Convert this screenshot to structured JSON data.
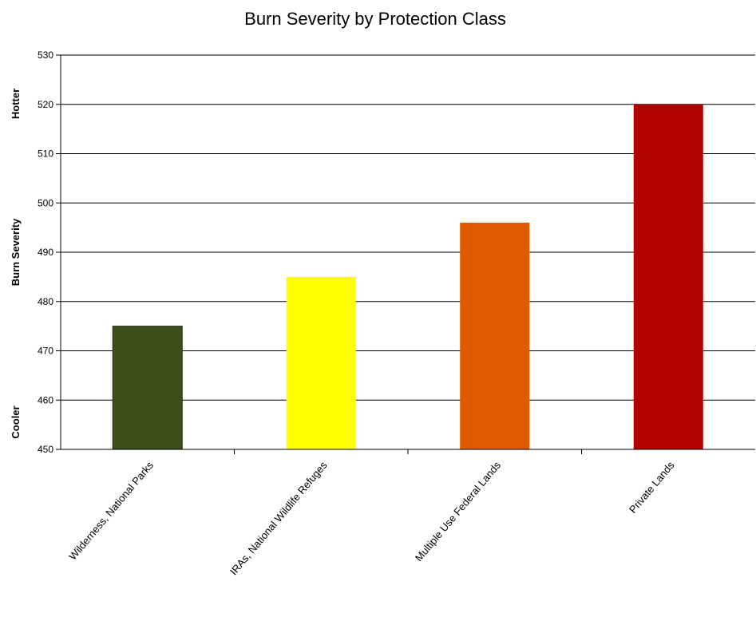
{
  "chart_data": {
    "type": "bar",
    "title": "Burn Severity by Protection Class",
    "ylabel": "Burn Severity",
    "ylabel_top": "Hotter",
    "ylabel_bottom": "Cooler",
    "xlabel": "",
    "categories": [
      "Wilderness, National Parks",
      "IRAs, National Wildlife Refuges",
      "Multiple Use Federal Lands",
      "Private Lands"
    ],
    "values": [
      475,
      485,
      496,
      520
    ],
    "bar_colors": [
      "#3d4f1a",
      "#ffff00",
      "#e05a00",
      "#b00000"
    ],
    "ylim": [
      450,
      530
    ],
    "yticks": [
      450,
      460,
      470,
      480,
      490,
      500,
      510,
      520,
      530
    ],
    "grid": true,
    "legend": "none"
  }
}
